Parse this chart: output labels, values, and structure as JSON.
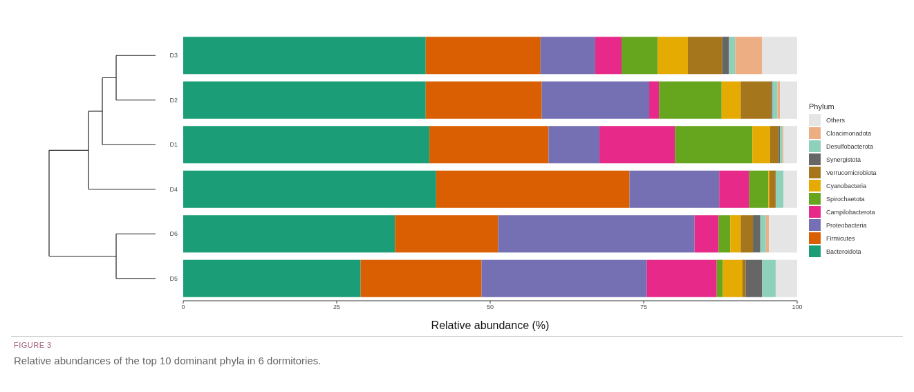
{
  "chart_data": {
    "type": "bar",
    "orientation": "horizontal",
    "stacked": true,
    "categories": [
      "D3",
      "D2",
      "D1",
      "D4",
      "D6",
      "D5"
    ],
    "series": [
      {
        "name": "Bacteroidota",
        "color": "#1b9e77",
        "values": [
          39.5,
          39.5,
          40.1,
          41.2,
          34.5,
          28.9
        ]
      },
      {
        "name": "Firmicutes",
        "color": "#d95f02",
        "values": [
          18.7,
          18.9,
          19.4,
          31.5,
          16.8,
          19.7
        ]
      },
      {
        "name": "Proteobacteria",
        "color": "#7570b3",
        "values": [
          8.9,
          17.5,
          8.3,
          14.6,
          32.0,
          26.9
        ]
      },
      {
        "name": "Campilobacterota",
        "color": "#e7298a",
        "values": [
          4.3,
          1.6,
          12.3,
          4.9,
          3.9,
          11.4
        ]
      },
      {
        "name": "Spirochaetota",
        "color": "#66a61e",
        "values": [
          5.9,
          10.2,
          12.6,
          3.1,
          1.9,
          1.0
        ]
      },
      {
        "name": "Cyanobacteria",
        "color": "#e6ab02",
        "values": [
          4.9,
          3.1,
          2.9,
          0.2,
          1.7,
          3.2
        ]
      },
      {
        "name": "Verrucomicrobiota",
        "color": "#a6761d",
        "values": [
          5.6,
          5.0,
          1.4,
          1.0,
          2.0,
          0.5
        ]
      },
      {
        "name": "Synergistota",
        "color": "#666666",
        "values": [
          1.1,
          0.2,
          0.2,
          0,
          1.2,
          2.7
        ]
      },
      {
        "name": "Desulfobacterota",
        "color": "#8fd0bb",
        "values": [
          1.0,
          0.8,
          0.4,
          1.3,
          0.9,
          2.2
        ]
      },
      {
        "name": "Cloacimonadota",
        "color": "#edae84",
        "values": [
          4.4,
          0.4,
          0.2,
          0,
          0.5,
          0
        ]
      },
      {
        "name": "Others",
        "color": "#e5e5e5",
        "values": [
          5.7,
          2.8,
          2.2,
          2.2,
          4.6,
          3.5
        ]
      }
    ],
    "xlim": [
      0,
      100
    ],
    "xticks": [
      0,
      25,
      50,
      75,
      100
    ],
    "xlabel": "Relative abundance (%)",
    "legend_title": "Phylum",
    "legend": "right",
    "grid": false,
    "annotations": [
      "FIGURE 3",
      "Relative abundances of the top 10 dominant phyla in 6 dormitories."
    ]
  }
}
